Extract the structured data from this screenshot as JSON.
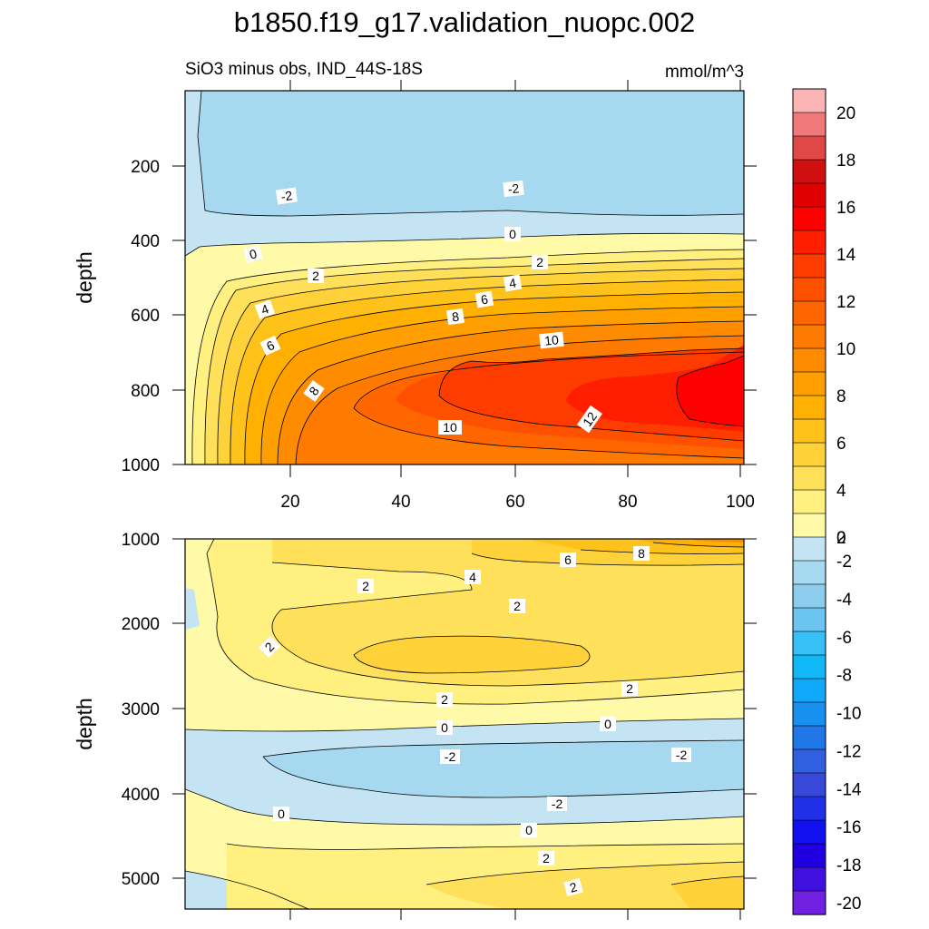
{
  "title": "b1850.f19_g17.validation_nuopc.002",
  "subtitle_left": "SiO3 minus obs, IND_44S-18S",
  "subtitle_right": "mmol/m^3",
  "chart_data": [
    {
      "type": "contour",
      "panel": "upper",
      "ylabel": "depth",
      "ylim": [
        0,
        1000
      ],
      "y_reversed": true,
      "yticks": [
        "200",
        "400",
        "600",
        "800",
        "1000"
      ],
      "xticks": [
        "20",
        "40",
        "60",
        "80",
        "100"
      ],
      "xlim": [
        0,
        100
      ],
      "contour_labels": [
        "-2",
        "-2",
        "0",
        "0",
        "2",
        "2",
        "4",
        "4",
        "6",
        "6",
        "8",
        "8",
        "10",
        "10",
        "12"
      ]
    },
    {
      "type": "contour",
      "panel": "lower",
      "ylabel": "depth",
      "ylim": [
        1000,
        5400
      ],
      "y_reversed": true,
      "yticks": [
        "1000",
        "2000",
        "3000",
        "4000",
        "5000"
      ],
      "xlim": [
        0,
        100
      ],
      "contour_labels": [
        "8",
        "6",
        "4",
        "2",
        "2",
        "2",
        "2",
        "2",
        "0",
        "0",
        "-2",
        "-2",
        "-2",
        "0",
        "0",
        "2",
        "2"
      ]
    }
  ],
  "colorbar": {
    "labels": [
      "20",
      "18",
      "16",
      "14",
      "12",
      "10",
      "8",
      "6",
      "4",
      "2",
      "0",
      "-2",
      "-4",
      "-6",
      "-8",
      "-10",
      "-12",
      "-14",
      "-16",
      "-18",
      "-20"
    ],
    "colors": [
      "#fbb4b4",
      "#f07878",
      "#e04848",
      "#d01010",
      "#e00000",
      "#ff0000",
      "#ff1e00",
      "#ff3c00",
      "#ff5000",
      "#ff6600",
      "#ff7a00",
      "#ff8c00",
      "#ffa000",
      "#ffb000",
      "#ffc21a",
      "#ffd23a",
      "#ffe05a",
      "#fff080",
      "#fffaa8",
      "#c4e4f4",
      "#a6d8f0",
      "#8ccced",
      "#6cc4f0",
      "#38c0f8",
      "#10b8f8",
      "#10a8f8",
      "#1890f0",
      "#2078e8",
      "#3060e0",
      "#3848d8",
      "#2030e8",
      "#1010f0",
      "#2000e0",
      "#4010e0",
      "#7020e0"
    ]
  }
}
